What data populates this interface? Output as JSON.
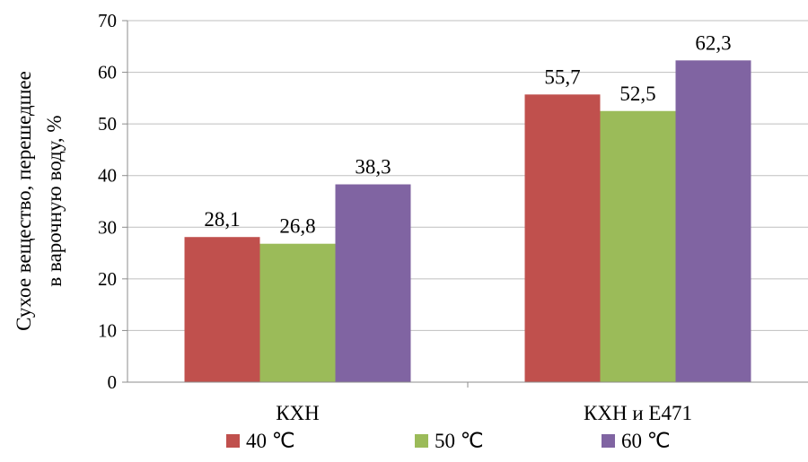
{
  "chart_data": {
    "type": "bar",
    "title": "",
    "xlabel": "",
    "ylabel_lines": [
      "Сухое вещество, перешедшее",
      "в варочную воду, %"
    ],
    "ylim": [
      0,
      70
    ],
    "yticks": [
      0,
      10,
      20,
      30,
      40,
      50,
      60,
      70
    ],
    "grid": true,
    "legend_position": "bottom",
    "categories": [
      "КХН",
      "КХН и Е471"
    ],
    "series": [
      {
        "name": "40 ℃",
        "color": "#c0504d",
        "values": [
          28.1,
          55.7
        ],
        "labels": [
          "28,1",
          "55,7"
        ]
      },
      {
        "name": "50 ℃",
        "color": "#9bbb59",
        "values": [
          26.8,
          52.5
        ],
        "labels": [
          "26,8",
          "52,5"
        ]
      },
      {
        "name": "60 ℃",
        "color": "#8064a2",
        "values": [
          38.3,
          62.3
        ],
        "labels": [
          "38,3",
          "62,3"
        ]
      }
    ]
  }
}
